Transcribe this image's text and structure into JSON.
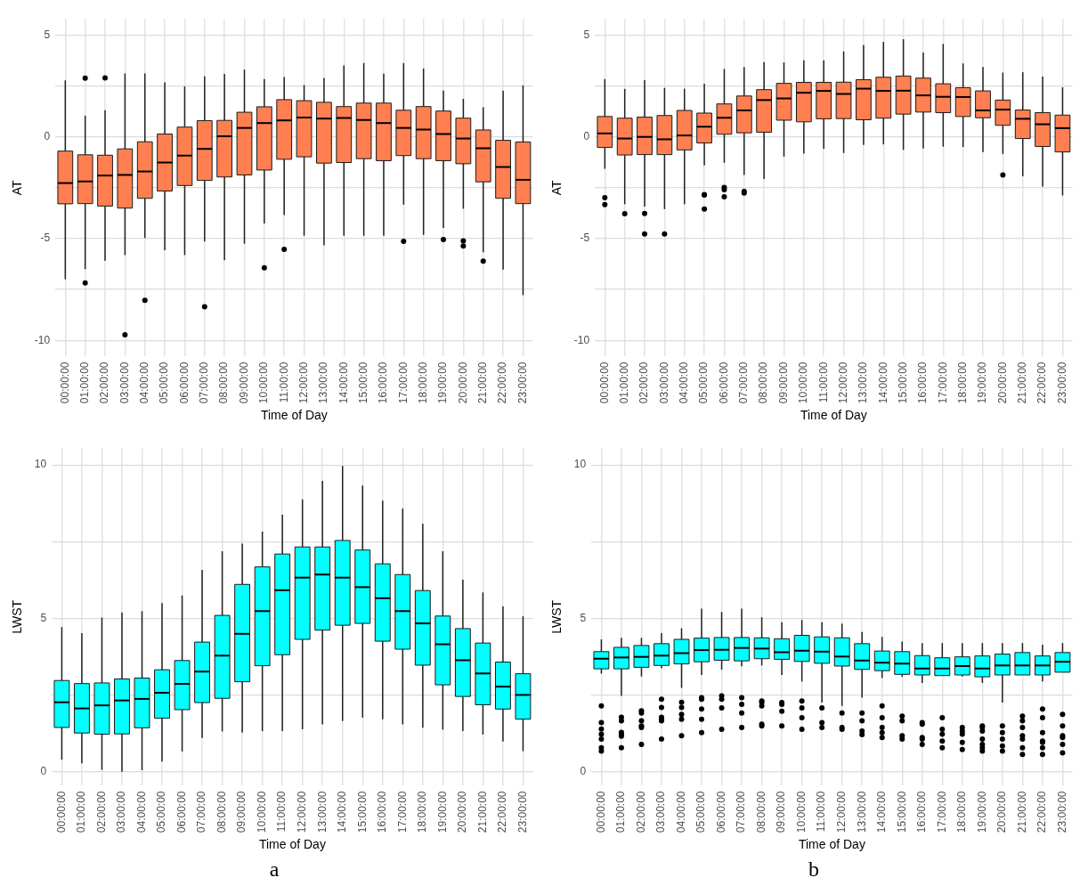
{
  "chart_data": [
    {
      "type": "box",
      "xlabel": "Time of Day",
      "ylabel": "AT",
      "categories": [
        "00:00:00",
        "01:00:00",
        "02:00:00",
        "03:00:00",
        "04:00:00",
        "05:00:00",
        "06:00:00",
        "07:00:00",
        "08:00:00",
        "09:00:00",
        "10:00:00",
        "11:00:00",
        "12:00:00",
        "13:00:00",
        "14:00:00",
        "15:00:00",
        "16:00:00",
        "17:00:00",
        "18:00:00",
        "19:00:00",
        "20:00:00",
        "21:00:00",
        "22:00:00",
        "23:00:00"
      ],
      "ylim": [
        -10.8,
        5.8
      ],
      "yticks": [
        -10,
        {
          "value": -7.5,
          "label": null
        },
        -5,
        {
          "value": -2.5,
          "label": null
        },
        0,
        {
          "value": 2.5,
          "label": null
        },
        5
      ],
      "grid": true,
      "marker": "circle",
      "series": [
        {
          "color": "#ff7f50",
          "boxes": [
            {
              "low": -7.0,
              "q1": -3.29,
              "median": -2.27,
              "q3": -0.7,
              "high": 2.78
            },
            {
              "low": -6.5,
              "q1": -3.28,
              "median": -2.19,
              "q3": -0.88,
              "high": 1.04,
              "outliers": [
                2.89,
                -7.18
              ]
            },
            {
              "low": -6.08,
              "q1": -3.4,
              "median": -1.9,
              "q3": -0.9,
              "high": 1.31,
              "outliers": [
                2.9
              ]
            },
            {
              "low": -5.81,
              "q1": -3.5,
              "median": -1.87,
              "q3": -0.59,
              "high": 3.12,
              "outliers": [
                -9.73
              ]
            },
            {
              "low": -4.97,
              "q1": -3.02,
              "median": -1.7,
              "q3": -0.24,
              "high": 3.12,
              "outliers": [
                -8.03
              ]
            },
            {
              "low": -5.57,
              "q1": -2.66,
              "median": -1.26,
              "q3": 0.14,
              "high": 2.68
            },
            {
              "low": -5.81,
              "q1": -2.39,
              "median": -0.92,
              "q3": 0.48,
              "high": 2.48
            },
            {
              "low": -5.14,
              "q1": -2.14,
              "median": -0.59,
              "q3": 0.8,
              "high": 2.97,
              "outliers": [
                -8.35
              ]
            },
            {
              "low": -6.06,
              "q1": -1.97,
              "median": 0.03,
              "q3": 0.81,
              "high": 3.09
            },
            {
              "low": -5.25,
              "q1": -1.87,
              "median": 0.44,
              "q3": 1.21,
              "high": 3.31
            },
            {
              "low": -4.26,
              "q1": -1.63,
              "median": 0.68,
              "q3": 1.48,
              "high": 2.84,
              "outliers": [
                -6.43
              ]
            },
            {
              "low": -3.84,
              "q1": -1.1,
              "median": 0.81,
              "q3": 1.83,
              "high": 2.94,
              "outliers": [
                -5.53
              ]
            },
            {
              "low": -4.86,
              "q1": -0.98,
              "median": 0.95,
              "q3": 1.78,
              "high": 2.55
            },
            {
              "low": -5.33,
              "q1": -1.29,
              "median": 0.9,
              "q3": 1.7,
              "high": 2.9
            },
            {
              "low": -4.86,
              "q1": -1.26,
              "median": 0.93,
              "q3": 1.49,
              "high": 3.51
            },
            {
              "low": -4.86,
              "q1": -1.07,
              "median": 0.83,
              "q3": 1.66,
              "high": 3.63
            },
            {
              "low": -4.86,
              "q1": -1.17,
              "median": 0.68,
              "q3": 1.66,
              "high": 3.11
            },
            {
              "low": -3.33,
              "q1": -0.92,
              "median": 0.44,
              "q3": 1.31,
              "high": 3.63,
              "outliers": [
                -5.13
              ]
            },
            {
              "low": -4.82,
              "q1": -1.07,
              "median": 0.36,
              "q3": 1.49,
              "high": 3.36
            },
            {
              "low": -4.48,
              "q1": -1.17,
              "median": 0.14,
              "q3": 1.27,
              "high": 2.28,
              "outliers": [
                -5.04
              ]
            },
            {
              "low": -3.53,
              "q1": -1.32,
              "median": -0.08,
              "q3": 0.92,
              "high": 1.87,
              "outliers": [
                -5.11,
                -5.36
              ]
            },
            {
              "low": -5.67,
              "q1": -2.21,
              "median": -0.56,
              "q3": 0.34,
              "high": 1.46,
              "outliers": [
                -6.11
              ]
            },
            {
              "low": -6.52,
              "q1": -3.02,
              "median": -1.48,
              "q3": -0.17,
              "high": 2.28
            },
            {
              "low": -7.78,
              "q1": -3.28,
              "median": -2.11,
              "q3": -0.25,
              "high": 2.53
            }
          ]
        }
      ]
    },
    {
      "type": "box",
      "xlabel": "Time of Day",
      "ylabel": "AT",
      "categories": [
        "00:00:00",
        "01:00:00",
        "02:00:00",
        "03:00:00",
        "04:00:00",
        "05:00:00",
        "06:00:00",
        "07:00:00",
        "08:00:00",
        "09:00:00",
        "10:00:00",
        "11:00:00",
        "12:00:00",
        "13:00:00",
        "14:00:00",
        "15:00:00",
        "16:00:00",
        "17:00:00",
        "18:00:00",
        "19:00:00",
        "20:00:00",
        "21:00:00",
        "22:00:00",
        "23:00:00"
      ],
      "ylim": [
        -10.8,
        5.8
      ],
      "yticks": [
        -10,
        {
          "value": -7.5,
          "label": null
        },
        -5,
        {
          "value": -2.5,
          "label": null
        },
        0,
        {
          "value": 2.5,
          "label": null
        },
        5
      ],
      "grid": true,
      "marker": "circle",
      "series": [
        {
          "color": "#ff7f50",
          "boxes": [
            {
              "low": -1.57,
              "q1": -0.52,
              "median": 0.17,
              "q3": 1.0,
              "high": 2.84,
              "outliers": [
                -2.99,
                -3.33
              ]
            },
            {
              "low": -3.31,
              "q1": -0.89,
              "median": -0.08,
              "q3": 0.92,
              "high": 2.36,
              "outliers": [
                -3.78
              ]
            },
            {
              "low": -3.43,
              "q1": -0.87,
              "median": 0.0,
              "q3": 0.97,
              "high": 2.79,
              "outliers": [
                -3.76,
                -4.77
              ]
            },
            {
              "low": -3.55,
              "q1": -0.87,
              "median": -0.12,
              "q3": 1.05,
              "high": 2.41,
              "outliers": [
                -4.77
              ]
            },
            {
              "low": -3.31,
              "q1": -0.64,
              "median": 0.07,
              "q3": 1.3,
              "high": 2.37
            },
            {
              "low": -1.4,
              "q1": -0.3,
              "median": 0.5,
              "q3": 1.17,
              "high": 2.61,
              "outliers": [
                -2.83,
                -2.86,
                -3.55
              ]
            },
            {
              "low": -1.27,
              "q1": 0.13,
              "median": 0.94,
              "q3": 1.62,
              "high": 3.34,
              "outliers": [
                -2.49,
                -2.59,
                -2.94
              ]
            },
            {
              "low": -1.87,
              "q1": 0.2,
              "median": 1.3,
              "q3": 2.01,
              "high": 3.43,
              "outliers": [
                -2.68,
                -2.76
              ]
            },
            {
              "low": -2.07,
              "q1": 0.23,
              "median": 1.81,
              "q3": 2.32,
              "high": 3.68
            },
            {
              "low": -0.97,
              "q1": 0.82,
              "median": 1.89,
              "q3": 2.63,
              "high": 3.66
            },
            {
              "low": -0.82,
              "q1": 0.74,
              "median": 2.17,
              "q3": 2.68,
              "high": 3.76
            },
            {
              "low": -0.59,
              "q1": 0.89,
              "median": 2.26,
              "q3": 2.68,
              "high": 3.76
            },
            {
              "low": -0.79,
              "q1": 0.9,
              "median": 2.11,
              "q3": 2.69,
              "high": 4.2
            },
            {
              "low": -0.4,
              "q1": 0.84,
              "median": 2.37,
              "q3": 2.81,
              "high": 4.52
            },
            {
              "low": -0.37,
              "q1": 0.92,
              "median": 2.26,
              "q3": 2.93,
              "high": 4.67
            },
            {
              "low": -0.64,
              "q1": 1.12,
              "median": 2.27,
              "q3": 2.99,
              "high": 4.8
            },
            {
              "low": -0.57,
              "q1": 1.22,
              "median": 2.04,
              "q3": 2.89,
              "high": 4.15
            },
            {
              "low": -0.48,
              "q1": 1.19,
              "median": 1.97,
              "q3": 2.61,
              "high": 4.57
            },
            {
              "low": -0.5,
              "q1": 1.0,
              "median": 1.96,
              "q3": 2.42,
              "high": 3.61
            },
            {
              "low": -0.74,
              "q1": 0.94,
              "median": 1.3,
              "q3": 2.26,
              "high": 3.43
            },
            {
              "low": -0.84,
              "q1": 0.57,
              "median": 1.34,
              "q3": 1.81,
              "high": 3.16,
              "outliers": [
                -1.87
              ]
            },
            {
              "low": -1.94,
              "q1": -0.08,
              "median": 0.89,
              "q3": 1.32,
              "high": 3.18
            },
            {
              "low": -2.44,
              "q1": -0.47,
              "median": 0.62,
              "q3": 1.19,
              "high": 2.96
            },
            {
              "low": -2.88,
              "q1": -0.74,
              "median": 0.43,
              "q3": 1.07,
              "high": 2.44
            }
          ]
        }
      ]
    },
    {
      "type": "box",
      "xlabel": "Time of Day",
      "ylabel": "LWST",
      "annotations": [
        "a"
      ],
      "categories": [
        "00:00:00",
        "01:00:00",
        "02:00:00",
        "03:00:00",
        "04:00:00",
        "05:00:00",
        "06:00:00",
        "07:00:00",
        "08:00:00",
        "09:00:00",
        "10:00:00",
        "11:00:00",
        "12:00:00",
        "13:00:00",
        "14:00:00",
        "15:00:00",
        "16:00:00",
        "17:00:00",
        "18:00:00",
        "19:00:00",
        "20:00:00",
        "21:00:00",
        "22:00:00",
        "23:00:00"
      ],
      "ylim": [
        -0.45,
        10.55
      ],
      "yticks": [
        0,
        {
          "value": 2.5,
          "label": null
        },
        5,
        {
          "value": 7.5,
          "label": null
        },
        10
      ],
      "grid": true,
      "marker": "circle",
      "series": [
        {
          "color": "#00ffff",
          "boxes": [
            {
              "low": 0.4,
              "q1": 1.45,
              "median": 2.27,
              "q3": 2.98,
              "high": 4.72
            },
            {
              "low": 0.28,
              "q1": 1.27,
              "median": 2.07,
              "q3": 2.88,
              "high": 4.52
            },
            {
              "low": 0.07,
              "q1": 1.23,
              "median": 2.17,
              "q3": 2.9,
              "high": 5.03
            },
            {
              "low": 0.01,
              "q1": 1.24,
              "median": 2.33,
              "q3": 3.03,
              "high": 5.2
            },
            {
              "low": 0.06,
              "q1": 1.44,
              "median": 2.38,
              "q3": 3.06,
              "high": 5.24
            },
            {
              "low": 0.34,
              "q1": 1.75,
              "median": 2.58,
              "q3": 3.33,
              "high": 5.5
            },
            {
              "low": 0.67,
              "q1": 2.03,
              "median": 2.87,
              "q3": 3.63,
              "high": 5.75
            },
            {
              "low": 1.11,
              "q1": 2.26,
              "median": 3.27,
              "q3": 4.23,
              "high": 6.58
            },
            {
              "low": 1.32,
              "q1": 2.4,
              "median": 3.79,
              "q3": 5.1,
              "high": 7.19
            },
            {
              "low": 1.28,
              "q1": 2.94,
              "median": 4.5,
              "q3": 6.11,
              "high": 7.44
            },
            {
              "low": 1.33,
              "q1": 3.46,
              "median": 5.24,
              "q3": 6.68,
              "high": 7.83
            },
            {
              "low": 1.33,
              "q1": 3.82,
              "median": 5.92,
              "q3": 7.1,
              "high": 8.38
            },
            {
              "low": 1.39,
              "q1": 4.32,
              "median": 6.33,
              "q3": 7.33,
              "high": 8.88
            },
            {
              "low": 1.55,
              "q1": 4.62,
              "median": 6.43,
              "q3": 7.33,
              "high": 9.48
            },
            {
              "low": 1.66,
              "q1": 4.78,
              "median": 6.33,
              "q3": 7.54,
              "high": 9.97
            },
            {
              "low": 1.77,
              "q1": 4.84,
              "median": 6.02,
              "q3": 7.23,
              "high": 9.33
            },
            {
              "low": 1.72,
              "q1": 4.26,
              "median": 5.66,
              "q3": 6.78,
              "high": 8.84
            },
            {
              "low": 1.55,
              "q1": 4.0,
              "median": 5.24,
              "q3": 6.43,
              "high": 8.58
            },
            {
              "low": 1.44,
              "q1": 3.48,
              "median": 4.84,
              "q3": 5.91,
              "high": 8.08
            },
            {
              "low": 1.38,
              "q1": 2.84,
              "median": 4.16,
              "q3": 5.08,
              "high": 7.19
            },
            {
              "low": 1.33,
              "q1": 2.46,
              "median": 3.64,
              "q3": 4.67,
              "high": 6.26
            },
            {
              "low": 1.22,
              "q1": 2.19,
              "median": 3.21,
              "q3": 4.2,
              "high": 5.85
            },
            {
              "low": 0.99,
              "q1": 2.05,
              "median": 2.78,
              "q3": 3.58,
              "high": 5.39
            },
            {
              "low": 0.68,
              "q1": 1.72,
              "median": 2.51,
              "q3": 3.2,
              "high": 5.07
            }
          ]
        }
      ]
    },
    {
      "type": "box",
      "xlabel": "Time of Day",
      "ylabel": "LWST",
      "annotations": [
        "b"
      ],
      "categories": [
        "00:00:00",
        "01:00:00",
        "02:00:00",
        "03:00:00",
        "04:00:00",
        "05:00:00",
        "06:00:00",
        "07:00:00",
        "08:00:00",
        "09:00:00",
        "10:00:00",
        "11:00:00",
        "12:00:00",
        "13:00:00",
        "14:00:00",
        "15:00:00",
        "16:00:00",
        "17:00:00",
        "18:00:00",
        "19:00:00",
        "20:00:00",
        "21:00:00",
        "22:00:00",
        "23:00:00"
      ],
      "ylim": [
        -0.45,
        10.55
      ],
      "yticks": [
        0,
        {
          "value": 2.5,
          "label": null
        },
        5,
        {
          "value": 7.5,
          "label": null
        },
        10
      ],
      "grid": true,
      "marker": "circle",
      "series": [
        {
          "color": "#00ffff",
          "boxes": [
            {
              "low": 3.2,
              "q1": 3.36,
              "median": 3.69,
              "q3": 3.92,
              "high": 4.32,
              "outliers": [
                2.15,
                1.61,
                1.4,
                1.23,
                1.07,
                0.79,
                0.68
              ]
            },
            {
              "low": 2.48,
              "q1": 3.36,
              "median": 3.73,
              "q3": 4.06,
              "high": 4.37,
              "outliers": [
                1.78,
                1.67,
                1.29,
                1.22,
                1.17,
                0.79
              ]
            },
            {
              "low": 3.11,
              "q1": 3.41,
              "median": 3.75,
              "q3": 4.12,
              "high": 4.37,
              "outliers": [
                1.99,
                1.92,
                1.67,
                1.5,
                1.45,
                0.9
              ]
            },
            {
              "low": 3.38,
              "q1": 3.47,
              "median": 3.79,
              "q3": 4.18,
              "high": 4.52,
              "outliers": [
                2.37,
                2.1,
                1.78,
                1.72,
                1.67,
                1.07
              ]
            },
            {
              "low": 2.74,
              "q1": 3.52,
              "median": 3.87,
              "q3": 4.32,
              "high": 4.68,
              "outliers": [
                2.27,
                2.1,
                1.88,
                1.72,
                1.18
              ]
            },
            {
              "low": 3.16,
              "q1": 3.59,
              "median": 3.97,
              "q3": 4.36,
              "high": 5.32,
              "outliers": [
                2.42,
                2.37,
                2.05,
                1.72,
                1.28
              ]
            },
            {
              "low": 3.33,
              "q1": 3.64,
              "median": 3.98,
              "q3": 4.38,
              "high": 5.21,
              "outliers": [
                2.48,
                2.37,
                2.09,
                1.39
              ]
            },
            {
              "low": 3.44,
              "q1": 3.62,
              "median": 4.04,
              "q3": 4.38,
              "high": 5.32,
              "outliers": [
                2.42,
                2.2,
                1.92,
                1.45
              ]
            },
            {
              "low": 3.47,
              "q1": 3.69,
              "median": 4.02,
              "q3": 4.37,
              "high": 5.04,
              "outliers": [
                2.31,
                2.26,
                2.15,
                1.56,
                1.5
              ]
            },
            {
              "low": 3.16,
              "q1": 3.67,
              "median": 3.9,
              "q3": 4.34,
              "high": 4.88,
              "outliers": [
                2.26,
                2.2,
                1.98,
                1.5
              ]
            },
            {
              "low": 2.95,
              "q1": 3.6,
              "median": 3.95,
              "q3": 4.45,
              "high": 4.95,
              "outliers": [
                2.31,
                2.09,
                1.77,
                1.39
              ]
            },
            {
              "low": 2.26,
              "q1": 3.54,
              "median": 3.92,
              "q3": 4.4,
              "high": 4.88,
              "outliers": [
                2.09,
                1.61,
                1.45
              ]
            },
            {
              "low": 2.15,
              "q1": 3.45,
              "median": 3.76,
              "q3": 4.37,
              "high": 4.83,
              "outliers": [
                1.92,
                1.45,
                1.39
              ]
            },
            {
              "low": 2.42,
              "q1": 3.34,
              "median": 3.63,
              "q3": 4.18,
              "high": 4.56,
              "outliers": [
                1.92,
                1.67,
                1.33,
                1.22
              ]
            },
            {
              "low": 3.06,
              "q1": 3.3,
              "median": 3.56,
              "q3": 3.94,
              "high": 4.4,
              "outliers": [
                2.15,
                1.77,
                1.45,
                1.28,
                1.12
              ]
            },
            {
              "low": 3.1,
              "q1": 3.18,
              "median": 3.53,
              "q3": 3.92,
              "high": 4.25,
              "outliers": [
                1.82,
                1.67,
                1.18,
                1.07
              ]
            },
            {
              "low": 2.9,
              "q1": 3.16,
              "median": 3.37,
              "q3": 3.79,
              "high": 4.2,
              "outliers": [
                1.61,
                1.56,
                1.12,
                1.07,
                0.9
              ]
            },
            {
              "low": 3.14,
              "q1": 3.14,
              "median": 3.37,
              "q3": 3.72,
              "high": 4.2,
              "outliers": [
                1.77,
                1.39,
                1.23,
                1.01,
                0.79
              ]
            },
            {
              "low": 3.11,
              "q1": 3.16,
              "median": 3.45,
              "q3": 3.75,
              "high": 4.2,
              "outliers": [
                1.45,
                1.33,
                1.23,
                0.96,
                0.73
              ]
            },
            {
              "low": 2.9,
              "q1": 3.1,
              "median": 3.37,
              "q3": 3.78,
              "high": 4.2,
              "outliers": [
                1.5,
                1.45,
                1.33,
                1.07,
                0.9,
                0.79,
                0.68
              ]
            },
            {
              "low": 2.26,
              "q1": 3.16,
              "median": 3.47,
              "q3": 3.84,
              "high": 4.2,
              "outliers": [
                1.5,
                1.28,
                1.07,
                0.85,
                0.68
              ]
            },
            {
              "low": 3.16,
              "q1": 3.16,
              "median": 3.47,
              "q3": 3.89,
              "high": 4.2,
              "outliers": [
                1.82,
                1.67,
                1.45,
                1.18,
                1.07,
                0.79,
                0.57
              ]
            },
            {
              "low": 2.95,
              "q1": 3.16,
              "median": 3.47,
              "q3": 3.78,
              "high": 4.15,
              "outliers": [
                2.05,
                1.77,
                1.28,
                1.01,
                0.96,
                0.79,
                0.57
              ]
            },
            {
              "low": 3.25,
              "q1": 3.25,
              "median": 3.59,
              "q3": 3.89,
              "high": 4.2,
              "outliers": [
                1.88,
                1.5,
                1.18,
                1.12,
                0.9,
                0.62
              ]
            }
          ]
        }
      ]
    }
  ]
}
